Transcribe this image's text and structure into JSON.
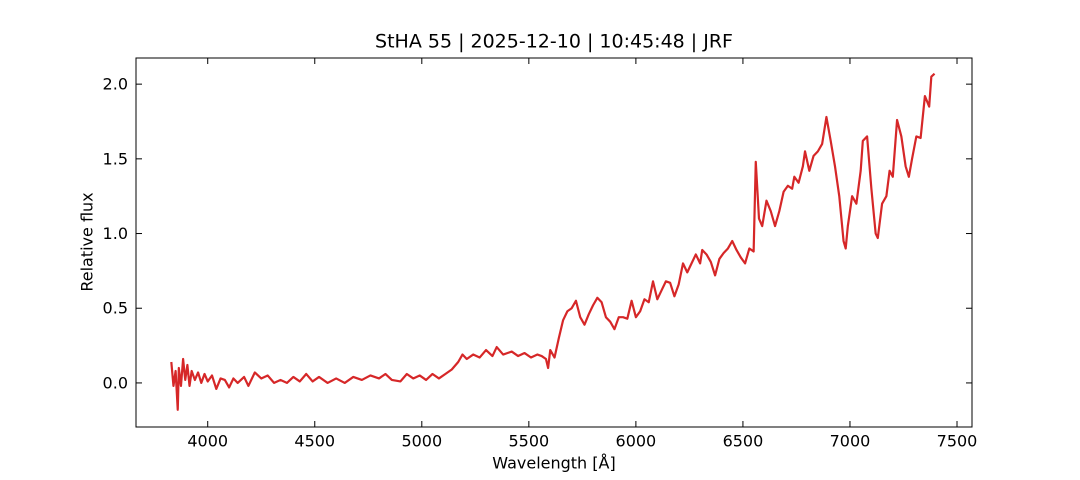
{
  "chart_data": {
    "type": "line",
    "title": "StHA 55 | 2025-12-10 | 10:45:48 | JRF",
    "xlabel": "Wavelength [Å]",
    "ylabel": "Relative flux",
    "x": [
      3830,
      3840,
      3850,
      3860,
      3865,
      3875,
      3885,
      3895,
      3905,
      3915,
      3925,
      3940,
      3955,
      3970,
      3985,
      4000,
      4020,
      4040,
      4060,
      4080,
      4100,
      4120,
      4140,
      4170,
      4190,
      4220,
      4250,
      4280,
      4310,
      4340,
      4370,
      4400,
      4430,
      4460,
      4490,
      4520,
      4560,
      4600,
      4640,
      4680,
      4720,
      4760,
      4800,
      4830,
      4860,
      4900,
      4930,
      4960,
      4990,
      5020,
      5050,
      5080,
      5110,
      5140,
      5170,
      5190,
      5210,
      5240,
      5270,
      5300,
      5330,
      5350,
      5380,
      5420,
      5450,
      5480,
      5510,
      5540,
      5560,
      5580,
      5590,
      5600,
      5620,
      5640,
      5660,
      5680,
      5700,
      5720,
      5740,
      5760,
      5780,
      5800,
      5820,
      5840,
      5860,
      5880,
      5900,
      5920,
      5940,
      5960,
      5980,
      6000,
      6020,
      6040,
      6060,
      6080,
      6100,
      6120,
      6140,
      6160,
      6180,
      6200,
      6220,
      6240,
      6260,
      6280,
      6300,
      6310,
      6330,
      6350,
      6370,
      6390,
      6410,
      6430,
      6450,
      6470,
      6490,
      6510,
      6530,
      6550,
      6560,
      6575,
      6590,
      6610,
      6630,
      6650,
      6670,
      6690,
      6710,
      6730,
      6740,
      6760,
      6780,
      6790,
      6810,
      6830,
      6850,
      6870,
      6890,
      6910,
      6930,
      6950,
      6970,
      6980,
      6990,
      7010,
      7030,
      7050,
      7060,
      7080,
      7100,
      7120,
      7130,
      7150,
      7170,
      7185,
      7200,
      7220,
      7240,
      7260,
      7275,
      7290,
      7310,
      7330,
      7350,
      7370,
      7380,
      7395
    ],
    "series": [
      {
        "name": "StHA 55",
        "color": "#d62728",
        "values": [
          0.14,
          -0.02,
          0.08,
          -0.18,
          0.1,
          -0.02,
          0.16,
          0.02,
          0.12,
          -0.02,
          0.08,
          0.02,
          0.07,
          0.0,
          0.06,
          0.01,
          0.05,
          -0.04,
          0.03,
          0.02,
          -0.03,
          0.03,
          0.0,
          0.04,
          -0.02,
          0.07,
          0.03,
          0.05,
          0.0,
          0.02,
          0.0,
          0.04,
          0.01,
          0.06,
          0.01,
          0.04,
          0.0,
          0.03,
          0.0,
          0.04,
          0.02,
          0.05,
          0.03,
          0.06,
          0.02,
          0.01,
          0.06,
          0.03,
          0.05,
          0.02,
          0.06,
          0.03,
          0.06,
          0.09,
          0.14,
          0.19,
          0.16,
          0.19,
          0.17,
          0.22,
          0.18,
          0.24,
          0.19,
          0.21,
          0.18,
          0.2,
          0.17,
          0.19,
          0.18,
          0.16,
          0.1,
          0.22,
          0.17,
          0.3,
          0.42,
          0.48,
          0.5,
          0.55,
          0.44,
          0.39,
          0.46,
          0.52,
          0.57,
          0.54,
          0.44,
          0.41,
          0.36,
          0.44,
          0.44,
          0.43,
          0.55,
          0.44,
          0.48,
          0.56,
          0.54,
          0.68,
          0.56,
          0.62,
          0.68,
          0.67,
          0.58,
          0.66,
          0.8,
          0.74,
          0.8,
          0.86,
          0.8,
          0.89,
          0.86,
          0.81,
          0.72,
          0.83,
          0.87,
          0.9,
          0.95,
          0.89,
          0.84,
          0.8,
          0.9,
          0.88,
          1.48,
          1.1,
          1.05,
          1.22,
          1.15,
          1.05,
          1.15,
          1.28,
          1.32,
          1.3,
          1.38,
          1.34,
          1.45,
          1.55,
          1.42,
          1.52,
          1.55,
          1.6,
          1.78,
          1.62,
          1.45,
          1.25,
          0.95,
          0.9,
          1.05,
          1.25,
          1.2,
          1.42,
          1.62,
          1.65,
          1.3,
          1.0,
          0.97,
          1.2,
          1.25,
          1.42,
          1.38,
          1.76,
          1.65,
          1.45,
          1.38,
          1.5,
          1.65,
          1.64,
          1.92,
          1.85,
          2.05,
          2.07
        ]
      }
    ],
    "xlim": [
      3665,
      7570
    ],
    "ylim": [
      -0.295,
      2.175
    ],
    "xticks": [
      4000,
      4500,
      5000,
      5500,
      6000,
      6500,
      7000,
      7500
    ],
    "yticks": [
      {
        "value": 0,
        "label": "0.0"
      },
      {
        "value": 0.5,
        "label": "0.5"
      },
      {
        "value": 1,
        "label": "1.0"
      },
      {
        "value": 1.5,
        "label": "1.5"
      },
      {
        "value": 2,
        "label": "2.0"
      }
    ],
    "grid": false
  }
}
